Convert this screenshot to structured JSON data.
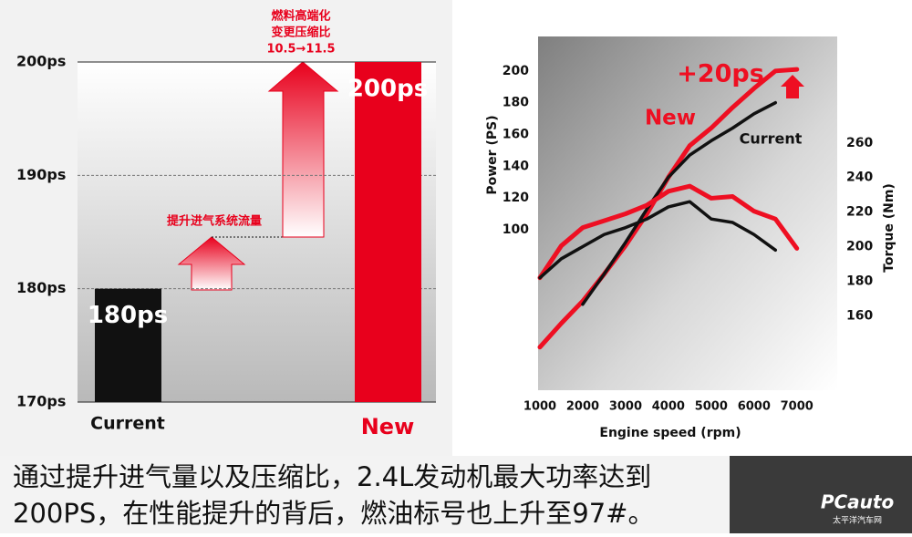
{
  "chart_data": [
    {
      "type": "bar",
      "categories": [
        "Current",
        "New"
      ],
      "values": [
        180,
        200
      ],
      "value_labels": [
        "180ps",
        "200ps"
      ],
      "colors": [
        "#111111",
        "#e8001c"
      ],
      "ylim": [
        170,
        200
      ],
      "yticks": [
        {
          "value": 170,
          "label": "170ps"
        },
        {
          "value": 180,
          "label": "180ps"
        },
        {
          "value": 190,
          "label": "190ps"
        },
        {
          "value": 200,
          "label": "200ps"
        }
      ],
      "grid": true,
      "annotations": [
        {
          "lines": [
            "提升进气系统流量"
          ]
        },
        {
          "lines": [
            "燃料高端化",
            "变更压缩比",
            "10.5→11.5"
          ]
        }
      ]
    },
    {
      "type": "line",
      "xlabel": "Engine speed (rpm)",
      "ylabel": "Power (PS)",
      "y2label": "Torque (Nm)",
      "x": [
        1000,
        1500,
        2000,
        2500,
        3000,
        3500,
        4000,
        4500,
        5000,
        5500,
        6000,
        6500,
        7000
      ],
      "xlim": [
        1000,
        7900
      ],
      "xticks": [
        1000,
        2000,
        3000,
        4000,
        5000,
        6000,
        7000
      ],
      "ylim": [
        0,
        220
      ],
      "yticks": [
        100,
        120,
        140,
        160,
        180,
        200
      ],
      "y2lim": [
        118,
        320
      ],
      "y2ticks": [
        160,
        180,
        200,
        220,
        240,
        260
      ],
      "series": [
        {
          "name": "New",
          "color": "#ee0f22",
          "values": [
            26,
            41,
            55,
            72,
            90,
            110,
            133,
            153,
            164,
            177,
            189,
            200,
            201
          ]
        },
        {
          "name": "Current",
          "color": "#111111",
          "values": [
            null,
            null,
            53,
            72,
            92,
            113,
            133,
            147,
            156,
            164,
            173,
            180,
            null
          ]
        },
        {
          "color": "#ee0f22",
          "axis": "y2",
          "values": [
            182,
            200.5,
            211,
            215,
            219,
            224,
            232,
            235,
            228,
            229,
            220.5,
            216,
            199
          ]
        },
        {
          "color": "#111111",
          "axis": "y2",
          "values": [
            182,
            193,
            200,
            207,
            211,
            216,
            223,
            226,
            216,
            214,
            207,
            198,
            null
          ]
        }
      ],
      "annotations": [
        "+20ps"
      ]
    }
  ],
  "caption": [
    "通过提升进气量以及压缩比，2.4L发动机最大功率达到",
    "200PS，在性能提升的背后，燃油标号也上升至97#。"
  ],
  "logo": {
    "brand": "PCauto",
    "site": "太平洋汽车网"
  }
}
